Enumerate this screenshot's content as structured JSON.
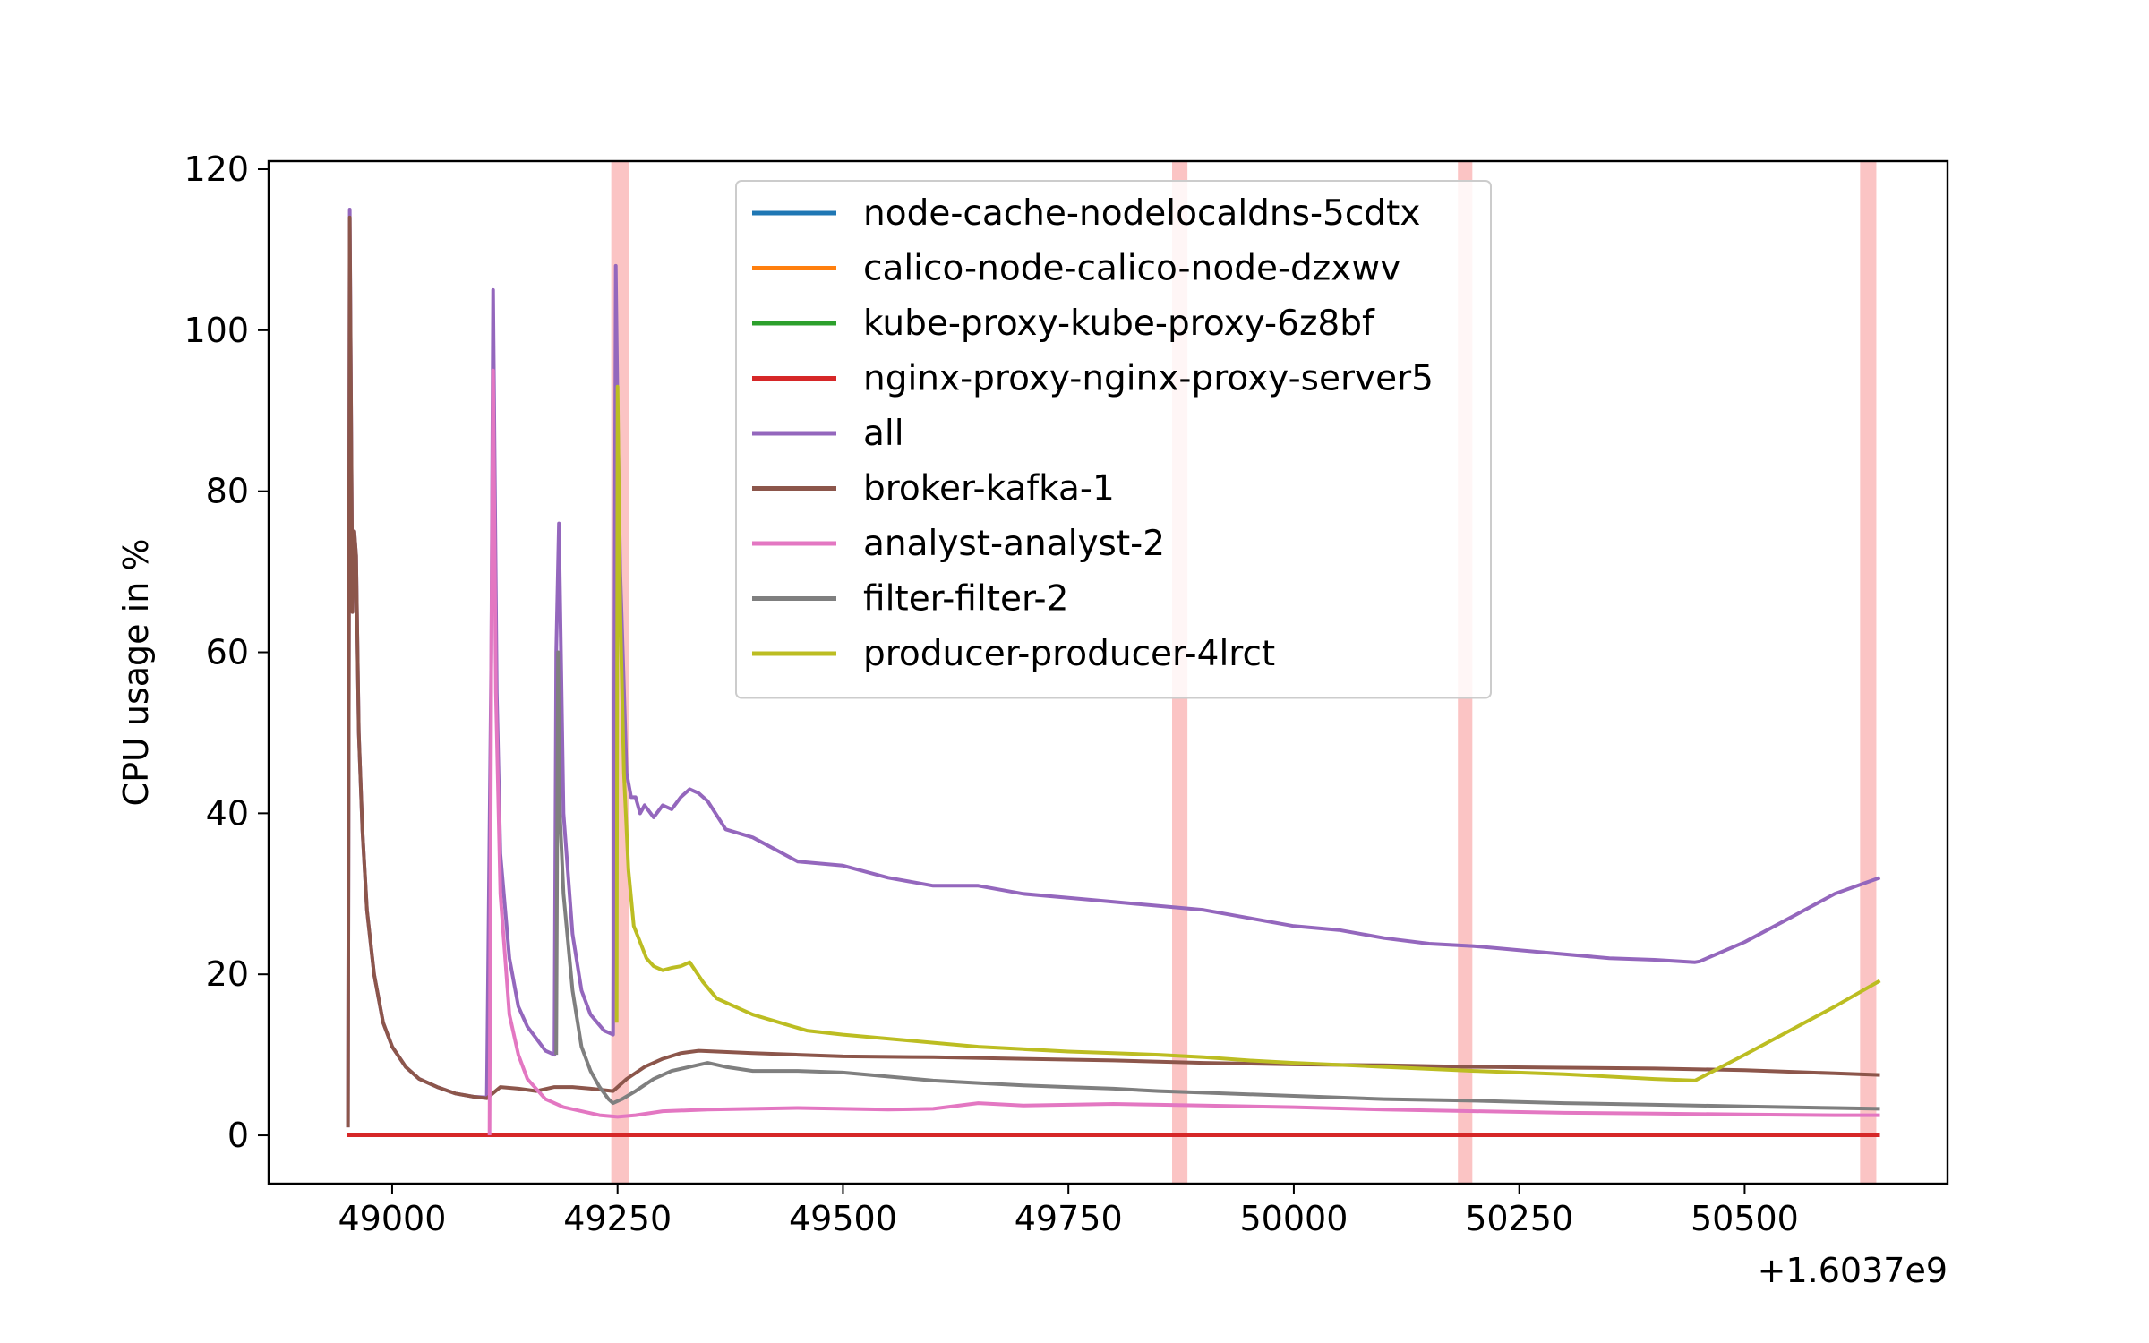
{
  "chart_data": {
    "type": "line",
    "title": "",
    "xlabel": "",
    "ylabel": "CPU usage in %",
    "x_offset_label": "+1.6037e9",
    "xlim": [
      48863,
      50725
    ],
    "ylim": [
      -6,
      121
    ],
    "x_ticks": [
      49000,
      49250,
      49500,
      49750,
      50000,
      50250,
      50500
    ],
    "x_tick_labels": [
      "49000",
      "49250",
      "49500",
      "49750",
      "50000",
      "50250",
      "50500"
    ],
    "y_ticks": [
      0,
      20,
      40,
      60,
      80,
      100,
      120
    ],
    "y_tick_labels": [
      "0",
      "20",
      "40",
      "60",
      "80",
      "100",
      "120"
    ],
    "grid": false,
    "legend_position": "upper center",
    "highlight_bands": [
      {
        "from": 49243,
        "to": 49263,
        "color": "#fbc4c4"
      },
      {
        "from": 49865,
        "to": 49882,
        "color": "#fbc4c4"
      },
      {
        "from": 50182,
        "to": 50198,
        "color": "#fbc4c4"
      },
      {
        "from": 50628,
        "to": 50646,
        "color": "#fbc4c4"
      }
    ],
    "series": [
      {
        "name": "node-cache-nodelocaldns-5cdtx",
        "color": "#1f77b4",
        "x": [
          48950,
          50650
        ],
        "y": [
          0,
          0
        ]
      },
      {
        "name": "calico-node-calico-node-dzxwv",
        "color": "#ff7f0e",
        "x": [
          48950,
          50650
        ],
        "y": [
          0,
          0
        ]
      },
      {
        "name": "kube-proxy-kube-proxy-6z8bf",
        "color": "#2ca02c",
        "x": [
          48950,
          50650
        ],
        "y": [
          0,
          0
        ]
      },
      {
        "name": "nginx-proxy-nginx-proxy-server5",
        "color": "#d62728",
        "x": [
          48950,
          50650
        ],
        "y": [
          0,
          0
        ]
      },
      {
        "name": "all",
        "color": "#9467bd",
        "x": [
          48951,
          48953,
          48956,
          48958,
          48960,
          48963,
          48967,
          48972,
          48980,
          48990,
          49000,
          49015,
          49030,
          49050,
          49070,
          49090,
          49105,
          49110,
          49112,
          49116,
          49120,
          49130,
          49140,
          49150,
          49160,
          49170,
          49180,
          49182,
          49185,
          49190,
          49200,
          49210,
          49220,
          49235,
          49245,
          49248,
          49250,
          49253,
          49260,
          49265,
          49270,
          49275,
          49280,
          49290,
          49300,
          49310,
          49320,
          49330,
          49340,
          49350,
          49370,
          49400,
          49450,
          49500,
          49550,
          49600,
          49650,
          49700,
          49750,
          49800,
          49850,
          49900,
          49950,
          50000,
          50050,
          50100,
          50150,
          50200,
          50250,
          50300,
          50350,
          50400,
          50445,
          50450,
          50500,
          50550,
          50600,
          50650
        ],
        "y": [
          1,
          115,
          65,
          75,
          72,
          50,
          38,
          28,
          20,
          14,
          11,
          8.5,
          7,
          6,
          5.2,
          4.8,
          4.7,
          60,
          105,
          55,
          35,
          22,
          16,
          13.5,
          12,
          10.5,
          10,
          60,
          76,
          40,
          25,
          18,
          15,
          13,
          12.5,
          108,
          90,
          70,
          45,
          42,
          42,
          40,
          41,
          39.5,
          41,
          40.5,
          42,
          43,
          42.5,
          41.5,
          38,
          37,
          34,
          33.5,
          32,
          31,
          31,
          30,
          29.5,
          29,
          28.5,
          28,
          27,
          26,
          25.5,
          24.5,
          23.8,
          23.5,
          23,
          22.5,
          22,
          21.8,
          21.5,
          21.6,
          24,
          27,
          30,
          32
        ]
      },
      {
        "name": "broker-kafka-1",
        "color": "#8c564b",
        "x": [
          48951,
          48953,
          48956,
          48958,
          48960,
          48963,
          48967,
          48972,
          48980,
          48990,
          49000,
          49015,
          49030,
          49050,
          49070,
          49090,
          49105,
          49120,
          49140,
          49160,
          49180,
          49200,
          49220,
          49245,
          49260,
          49280,
          49300,
          49320,
          49340,
          49360,
          49400,
          49450,
          49500,
          49600,
          49700,
          49800,
          49900,
          50000,
          50100,
          50200,
          50300,
          50400,
          50500,
          50600,
          50650
        ],
        "y": [
          1,
          114,
          65,
          75,
          72,
          50,
          38,
          28,
          20,
          14,
          11,
          8.5,
          7,
          6,
          5.2,
          4.8,
          4.6,
          6,
          5.8,
          5.5,
          6,
          6,
          5.8,
          5.5,
          7,
          8.5,
          9.5,
          10.2,
          10.5,
          10.4,
          10.2,
          10,
          9.8,
          9.7,
          9.5,
          9.3,
          9,
          8.8,
          8.7,
          8.5,
          8.4,
          8.3,
          8.1,
          7.7,
          7.5
        ]
      },
      {
        "name": "analyst-analyst-2",
        "color": "#e377c2",
        "x": [
          49108,
          49110,
          49112,
          49115,
          49120,
          49130,
          49140,
          49150,
          49170,
          49190,
          49210,
          49230,
          49250,
          49270,
          49300,
          49350,
          49400,
          49450,
          49500,
          49550,
          49600,
          49650,
          49700,
          49750,
          49800,
          49850,
          49900,
          50000,
          50100,
          50200,
          50300,
          50400,
          50500,
          50600,
          50650
        ],
        "y": [
          0,
          60,
          95,
          55,
          30,
          15,
          10,
          7,
          4.5,
          3.5,
          3,
          2.5,
          2.3,
          2.5,
          3,
          3.2,
          3.3,
          3.4,
          3.3,
          3.2,
          3.3,
          4,
          3.7,
          3.8,
          3.9,
          3.8,
          3.7,
          3.5,
          3.2,
          3,
          2.8,
          2.7,
          2.6,
          2.5,
          2.5
        ]
      },
      {
        "name": "filter-filter-2",
        "color": "#7f7f7f",
        "x": [
          49182,
          49184,
          49186,
          49190,
          49200,
          49210,
          49220,
          49230,
          49240,
          49245,
          49255,
          49270,
          49290,
          49310,
          49330,
          49350,
          49370,
          49400,
          49450,
          49500,
          49550,
          49600,
          49650,
          49700,
          49750,
          49800,
          49850,
          49900,
          50000,
          50100,
          50200,
          50300,
          50400,
          50500,
          50600,
          50650
        ],
        "y": [
          10,
          60,
          40,
          30,
          18,
          11,
          8,
          6,
          4.5,
          4,
          4.5,
          5.5,
          7,
          8,
          8.5,
          9,
          8.5,
          8,
          8,
          7.8,
          7.3,
          6.8,
          6.5,
          6.2,
          6,
          5.8,
          5.5,
          5.3,
          4.9,
          4.5,
          4.3,
          4,
          3.8,
          3.6,
          3.4,
          3.3
        ]
      },
      {
        "name": "producer-producer-4lrct",
        "color": "#bcbd22",
        "x": [
          49249,
          49250,
          49253,
          49257,
          49262,
          49268,
          49275,
          49282,
          49290,
          49300,
          49310,
          49320,
          49330,
          49345,
          49360,
          49380,
          49400,
          49430,
          49460,
          49500,
          49550,
          49600,
          49650,
          49700,
          49750,
          49800,
          49850,
          49900,
          49950,
          50000,
          50100,
          50200,
          50300,
          50400,
          50445,
          50500,
          50550,
          50600,
          50650
        ],
        "y": [
          14,
          93,
          65,
          45,
          33,
          26,
          24,
          22,
          21,
          20.5,
          20.8,
          21,
          21.5,
          19,
          17,
          16,
          15,
          14,
          13,
          12.5,
          12,
          11.5,
          11,
          10.7,
          10.4,
          10.2,
          10,
          9.7,
          9.3,
          9,
          8.5,
          8,
          7.6,
          7,
          6.8,
          10,
          13,
          16,
          19.2
        ]
      }
    ]
  }
}
